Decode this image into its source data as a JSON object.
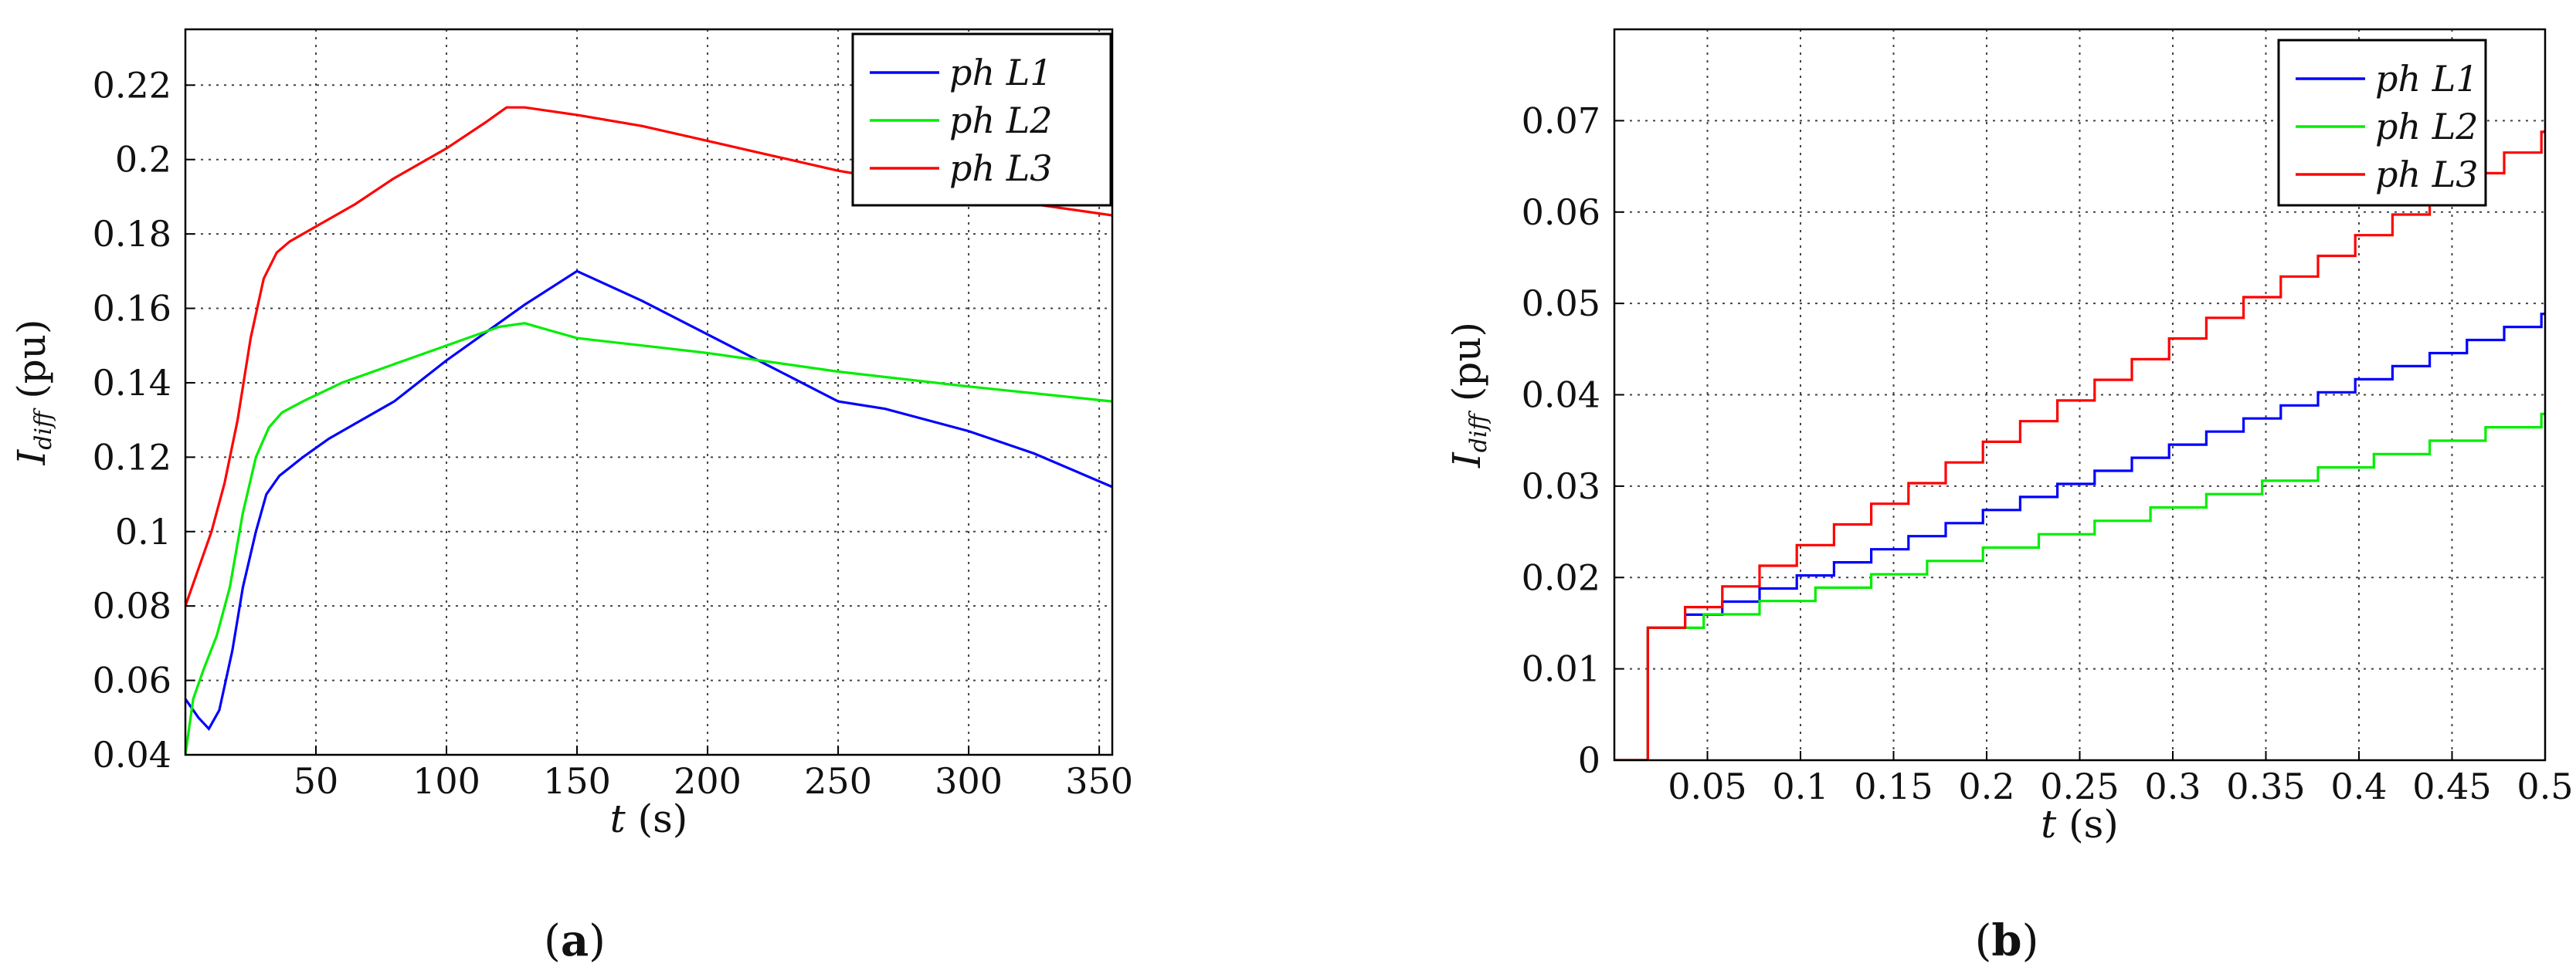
{
  "chart_data": [
    {
      "type": "line",
      "panel_label": "a",
      "xlabel_var": "t",
      "xlabel_unit": " (s)",
      "ylabel_var": "I",
      "ylabel_sub": "diff",
      "ylabel_unit": " (pu)",
      "xlim": [
        0,
        355
      ],
      "ylim": [
        0.04,
        0.235
      ],
      "xticks": [
        50,
        100,
        150,
        200,
        250,
        300,
        350
      ],
      "xtick_labels": [
        "50",
        "100",
        "150",
        "200",
        "250",
        "300",
        "350"
      ],
      "yticks": [
        0.04,
        0.06,
        0.08,
        0.1,
        0.12,
        0.14,
        0.16,
        0.18,
        0.2,
        0.22
      ],
      "ytick_labels": [
        "0.04",
        "0.06",
        "0.08",
        "0.1",
        "0.12",
        "0.14",
        "0.16",
        "0.18",
        "0.2",
        "0.22"
      ],
      "grid": true,
      "legend_position": "top-right",
      "series": [
        {
          "name": "ph L1",
          "color": "#0000ff",
          "x": [
            0,
            5,
            9,
            13,
            18,
            22,
            27,
            31,
            36,
            45,
            55,
            65,
            80,
            100,
            120,
            130,
            150,
            175,
            200,
            225,
            250,
            268,
            300,
            325,
            355
          ],
          "y": [
            0.055,
            0.05,
            0.047,
            0.052,
            0.068,
            0.085,
            0.1,
            0.11,
            0.115,
            0.12,
            0.125,
            0.129,
            0.135,
            0.146,
            0.156,
            0.161,
            0.17,
            0.162,
            0.153,
            0.144,
            0.135,
            0.133,
            0.127,
            0.121,
            0.112
          ]
        },
        {
          "name": "ph L2",
          "color": "#00ee00",
          "x": [
            0,
            3,
            7,
            12,
            17,
            22,
            27,
            32,
            37,
            45,
            60,
            80,
            100,
            120,
            130,
            140,
            150,
            175,
            200,
            250,
            300,
            355
          ],
          "y": [
            0.04,
            0.055,
            0.063,
            0.072,
            0.085,
            0.105,
            0.12,
            0.128,
            0.132,
            0.135,
            0.14,
            0.145,
            0.15,
            0.155,
            0.156,
            0.154,
            0.152,
            0.15,
            0.148,
            0.143,
            0.139,
            0.135
          ]
        },
        {
          "name": "ph L3",
          "color": "#ff0000",
          "x": [
            0,
            5,
            10,
            15,
            20,
            25,
            30,
            35,
            40,
            50,
            65,
            80,
            100,
            115,
            123,
            130,
            150,
            175,
            200,
            225,
            250,
            275,
            300,
            325,
            355
          ],
          "y": [
            0.08,
            0.09,
            0.1,
            0.113,
            0.13,
            0.152,
            0.168,
            0.175,
            0.178,
            0.182,
            0.188,
            0.195,
            0.203,
            0.21,
            0.214,
            0.214,
            0.212,
            0.209,
            0.205,
            0.201,
            0.197,
            0.194,
            0.191,
            0.188,
            0.185
          ]
        }
      ]
    },
    {
      "type": "line",
      "panel_label": "b",
      "xlabel_var": "t",
      "xlabel_unit": " (s)",
      "ylabel_var": "I",
      "ylabel_sub": "diff",
      "ylabel_unit": " (pu)",
      "xlim": [
        0,
        0.5
      ],
      "ylim": [
        0,
        0.08
      ],
      "xticks": [
        0.05,
        0.1,
        0.15,
        0.2,
        0.25,
        0.3,
        0.35,
        0.4,
        0.45,
        0.5
      ],
      "xtick_labels": [
        "0.05",
        "0.1",
        "0.15",
        "0.2",
        "0.25",
        "0.3",
        "0.35",
        "0.4",
        "0.45",
        "0.5"
      ],
      "yticks": [
        0,
        0.01,
        0.02,
        0.03,
        0.04,
        0.05,
        0.06,
        0.07
      ],
      "ytick_labels": [
        "0",
        "0.01",
        "0.02",
        "0.03",
        "0.04",
        "0.05",
        "0.06",
        "0.07"
      ],
      "grid": true,
      "legend_position": "top-right",
      "series": [
        {
          "name": "ph L1",
          "color": "#0000ff",
          "x": [
            0,
            0.018,
            0.018,
            0.5
          ],
          "y": [
            0,
            0,
            0.0145,
            0.049
          ]
        },
        {
          "name": "ph L2",
          "color": "#00ee00",
          "x": [
            0,
            0.018,
            0.018,
            0.5
          ],
          "y": [
            0,
            0,
            0.0145,
            0.038
          ]
        },
        {
          "name": "ph L3",
          "color": "#ff0000",
          "x": [
            0,
            0.018,
            0.018,
            0.5
          ],
          "y": [
            0,
            0,
            0.0145,
            0.069
          ]
        }
      ]
    }
  ]
}
